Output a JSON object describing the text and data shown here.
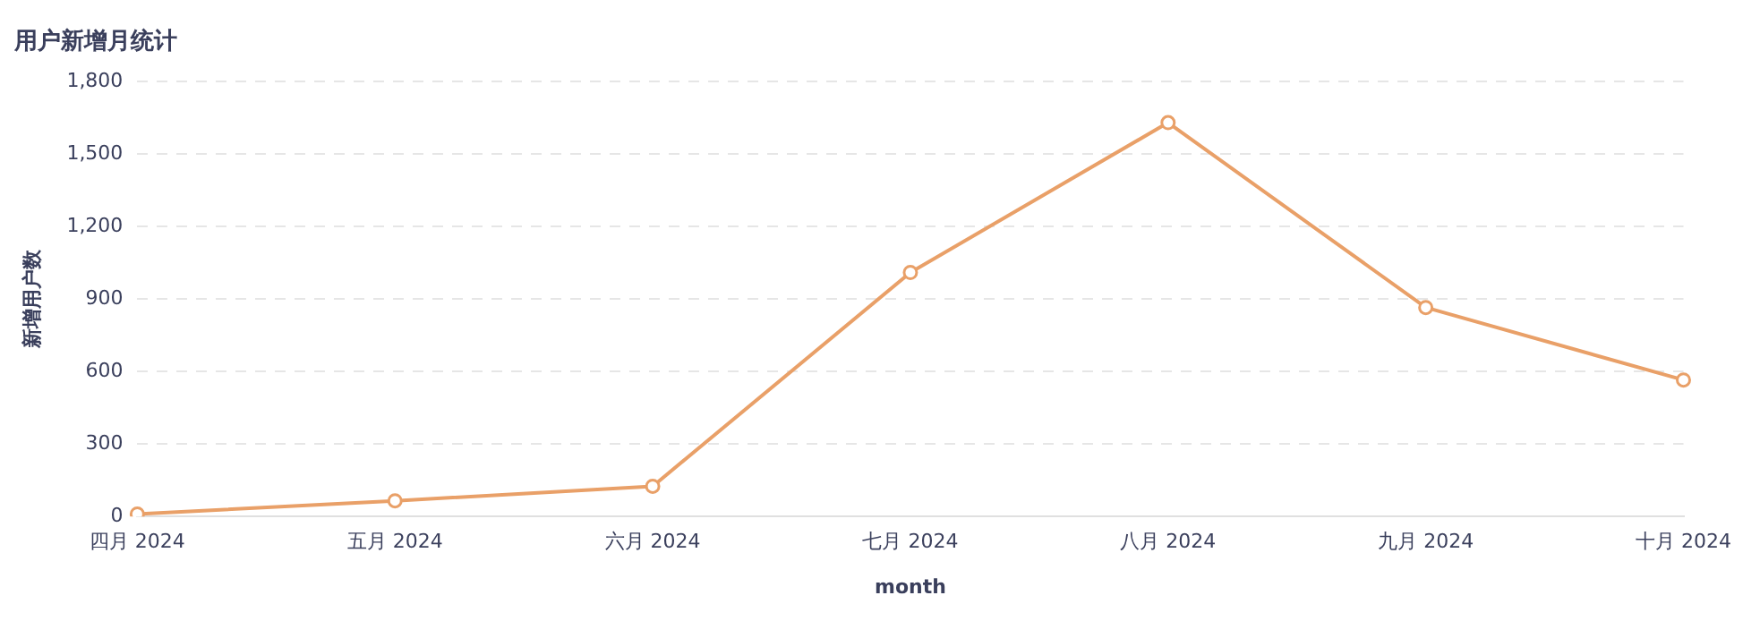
{
  "chart_data": {
    "type": "line",
    "title": "用户新增月统计",
    "xlabel": "month",
    "ylabel": "新增用户数",
    "categories": [
      "四月 2024",
      "五月 2024",
      "六月 2024",
      "七月 2024",
      "八月 2024",
      "九月 2024",
      "十月 2024"
    ],
    "series": [
      {
        "color": "#e9a068",
        "values": [
          10,
          65,
          125,
          1010,
          1630,
          865,
          565
        ]
      }
    ],
    "ylim": [
      0,
      1800
    ],
    "yticks": [
      {
        "value": 0,
        "label": "0"
      },
      {
        "value": 300,
        "label": "300"
      },
      {
        "value": 600,
        "label": "600"
      },
      {
        "value": 900,
        "label": "900"
      },
      {
        "value": 1200,
        "label": "1,200"
      },
      {
        "value": 1500,
        "label": "1,500"
      },
      {
        "value": 1800,
        "label": "1,800"
      }
    ],
    "grid": "y",
    "legend": false,
    "marker": "circle",
    "line_style": "solid"
  }
}
